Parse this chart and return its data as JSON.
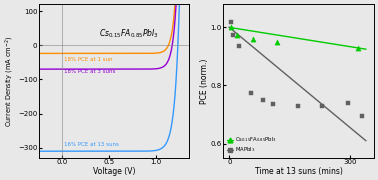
{
  "title_left": "Cs$_{0.15}$FA$_{0.85}$PbI$_3$",
  "xlabel_left": "Voltage (V)",
  "ylabel_left": "Current Density (mA cm$^{-2}$)",
  "xlim_left": [
    -0.25,
    1.35
  ],
  "ylim_left": [
    -330,
    120
  ],
  "xlabel_right": "Time at 13 suns (mins)",
  "ylabel_right": "PCE (norm.)",
  "xlim_right": [
    -15,
    360
  ],
  "ylim_right": [
    0.55,
    1.08
  ],
  "curve_1sun_color": "#FF8C00",
  "curve_3sun_color": "#9400D3",
  "curve_13sun_color": "#3399FF",
  "label_1sun": "18% PCE at 1 sun",
  "label_3sun": "18% PCE at 3 suns",
  "label_13sun": "16% PCE at 13 suns",
  "cs_points_x": [
    3,
    20,
    60,
    120,
    320
  ],
  "cs_points_y": [
    1.0,
    0.975,
    0.96,
    0.95,
    0.93
  ],
  "ma_points_x": [
    3,
    10,
    25,
    55,
    85,
    110,
    170,
    230,
    295,
    330
  ],
  "ma_points_y": [
    1.02,
    0.975,
    0.935,
    0.775,
    0.75,
    0.735,
    0.73,
    0.73,
    0.74,
    0.695
  ],
  "cs_line_x": [
    0,
    340
  ],
  "cs_line_y": [
    1.0,
    0.925
  ],
  "ma_line_x": [
    0,
    340
  ],
  "ma_line_y": [
    1.0,
    0.61
  ],
  "cs_marker_color": "#00CC00",
  "ma_marker_color": "#606060",
  "legend_cs": "Cs$_{0.15}$FA$_{0.85}$PbI$_3$",
  "legend_ma": "MAPbI$_3$",
  "bg_color": "#E8E8E8",
  "yticks_left": [
    -300,
    -200,
    -100,
    0,
    100
  ],
  "xticks_left": [
    0.0,
    0.5,
    1.0
  ],
  "yticks_right": [
    0.6,
    0.8,
    1.0
  ],
  "xticks_right": [
    0,
    300
  ]
}
